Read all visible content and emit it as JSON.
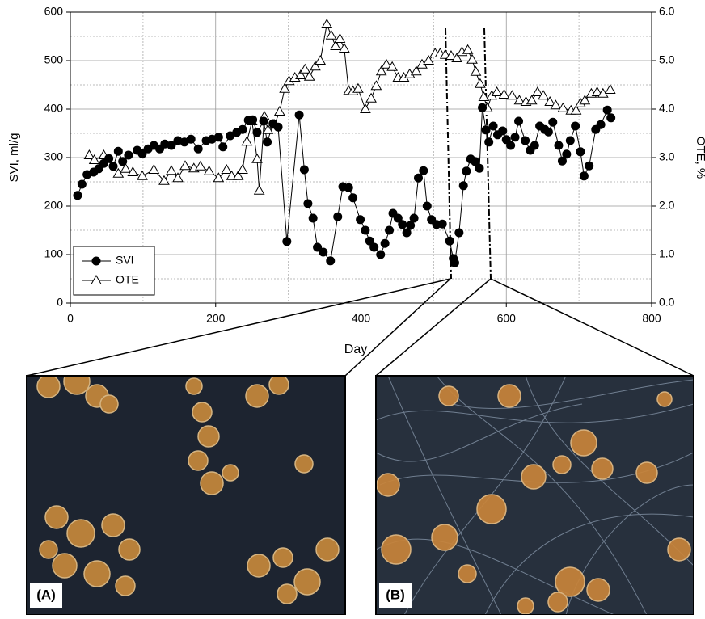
{
  "chart_data": {
    "type": "line",
    "x_label": "Day",
    "y_label": "SVI, ml/g",
    "y2_label": "OTE, %",
    "xlim": [
      0,
      800
    ],
    "xticks": [
      0,
      200,
      400,
      600,
      800
    ],
    "ylim": [
      0,
      600
    ],
    "yticks": [
      0,
      100,
      200,
      300,
      400,
      500,
      600
    ],
    "y2lim": [
      0,
      6
    ],
    "y2ticks": [
      {
        "value": 0,
        "label": "0.0"
      },
      {
        "value": 1,
        "label": "1.0"
      },
      {
        "value": 2,
        "label": "2.0"
      },
      {
        "value": 3,
        "label": "3.0"
      },
      {
        "value": 4,
        "label": "4.0"
      },
      {
        "value": 5,
        "label": "5.0"
      },
      {
        "value": 6,
        "label": "6.0"
      }
    ],
    "grid": true,
    "legend": "lower left",
    "series": [
      {
        "name": "SVI",
        "color": "#000000",
        "marker": "circle",
        "x": [
          10,
          16,
          23,
          32,
          39,
          46,
          53,
          59,
          66,
          72,
          80,
          92,
          99,
          107,
          115,
          123,
          130,
          139,
          148,
          157,
          166,
          176,
          187,
          195,
          204,
          210,
          220,
          229,
          237,
          245,
          251,
          257,
          266,
          271,
          279,
          286,
          298,
          315,
          322,
          327,
          334,
          340,
          348,
          358,
          368,
          375,
          383,
          389,
          399,
          406,
          412,
          418,
          427,
          433,
          439,
          444,
          451,
          457,
          463,
          468,
          473,
          479,
          486,
          491,
          497,
          504,
          512,
          522,
          527,
          529,
          535,
          541,
          545,
          551,
          557,
          563,
          567,
          572,
          576,
          582,
          588,
          595,
          600,
          606,
          612,
          617,
          626,
          633,
          639,
          646,
          653,
          658,
          664,
          672,
          677,
          683,
          688,
          695,
          702,
          707,
          714,
          723,
          730,
          739,
          744
        ],
        "values": [
          222,
          245,
          265,
          270,
          277,
          288,
          298,
          282,
          313,
          292,
          305,
          315,
          308,
          318,
          325,
          318,
          328,
          325,
          335,
          332,
          338,
          318,
          335,
          338,
          342,
          322,
          345,
          352,
          358,
          377,
          378,
          352,
          375,
          332,
          370,
          363,
          127,
          388,
          275,
          205,
          175,
          115,
          105,
          87,
          178,
          240,
          238,
          217,
          172,
          150,
          128,
          115,
          100,
          123,
          150,
          185,
          175,
          162,
          145,
          160,
          175,
          258,
          273,
          200,
          172,
          162,
          163,
          128,
          92,
          83,
          145,
          242,
          272,
          297,
          292,
          278,
          403,
          357,
          332,
          365,
          347,
          355,
          337,
          325,
          342,
          375,
          335,
          315,
          325,
          365,
          358,
          353,
          373,
          325,
          293,
          307,
          335,
          365,
          312,
          262,
          283,
          358,
          368,
          398,
          382
        ]
      },
      {
        "name": "OTE",
        "color": "#000000",
        "marker": "triangle",
        "axis": "y2",
        "x": [
          26,
          33,
          46,
          66,
          76,
          86,
          99,
          115,
          129,
          139,
          148,
          158,
          170,
          179,
          191,
          204,
          215,
          222,
          231,
          237,
          243,
          250,
          257,
          260,
          267,
          272,
          281,
          288,
          295,
          301,
          309,
          317,
          323,
          329,
          337,
          344,
          353,
          359,
          365,
          371,
          377,
          383,
          389,
          396,
          406,
          414,
          421,
          428,
          435,
          443,
          451,
          459,
          467,
          476,
          484,
          493,
          502,
          509,
          516,
          524,
          532,
          539,
          547,
          553,
          558,
          564,
          569,
          574,
          580,
          587,
          597,
          608,
          618,
          627,
          635,
          643,
          651,
          660,
          668,
          678,
          689,
          696,
          702,
          708,
          717,
          725,
          733,
          743
        ],
        "values": [
          3.05,
          2.95,
          3.05,
          2.67,
          2.77,
          2.7,
          2.62,
          2.75,
          2.52,
          2.73,
          2.58,
          2.83,
          2.78,
          2.82,
          2.72,
          2.58,
          2.75,
          2.62,
          2.62,
          2.75,
          3.33,
          3.75,
          2.97,
          2.32,
          3.85,
          3.57,
          3.68,
          3.95,
          4.42,
          4.58,
          4.65,
          4.7,
          4.82,
          4.67,
          4.88,
          5.0,
          5.75,
          5.52,
          5.3,
          5.45,
          5.25,
          4.38,
          4.37,
          4.42,
          4.0,
          4.22,
          4.48,
          4.78,
          4.92,
          4.87,
          4.65,
          4.65,
          4.72,
          4.78,
          4.92,
          5.0,
          5.15,
          5.15,
          5.12,
          5.1,
          5.05,
          5.18,
          5.22,
          5.02,
          4.77,
          4.52,
          4.25,
          4.02,
          4.28,
          4.35,
          4.3,
          4.28,
          4.18,
          4.15,
          4.18,
          4.35,
          4.28,
          4.15,
          4.08,
          4.02,
          3.97,
          3.97,
          4.12,
          4.18,
          4.32,
          4.35,
          4.32,
          4.4
        ]
      }
    ]
  },
  "images": [
    {
      "label": "(A)"
    },
    {
      "label": "(B)"
    }
  ]
}
